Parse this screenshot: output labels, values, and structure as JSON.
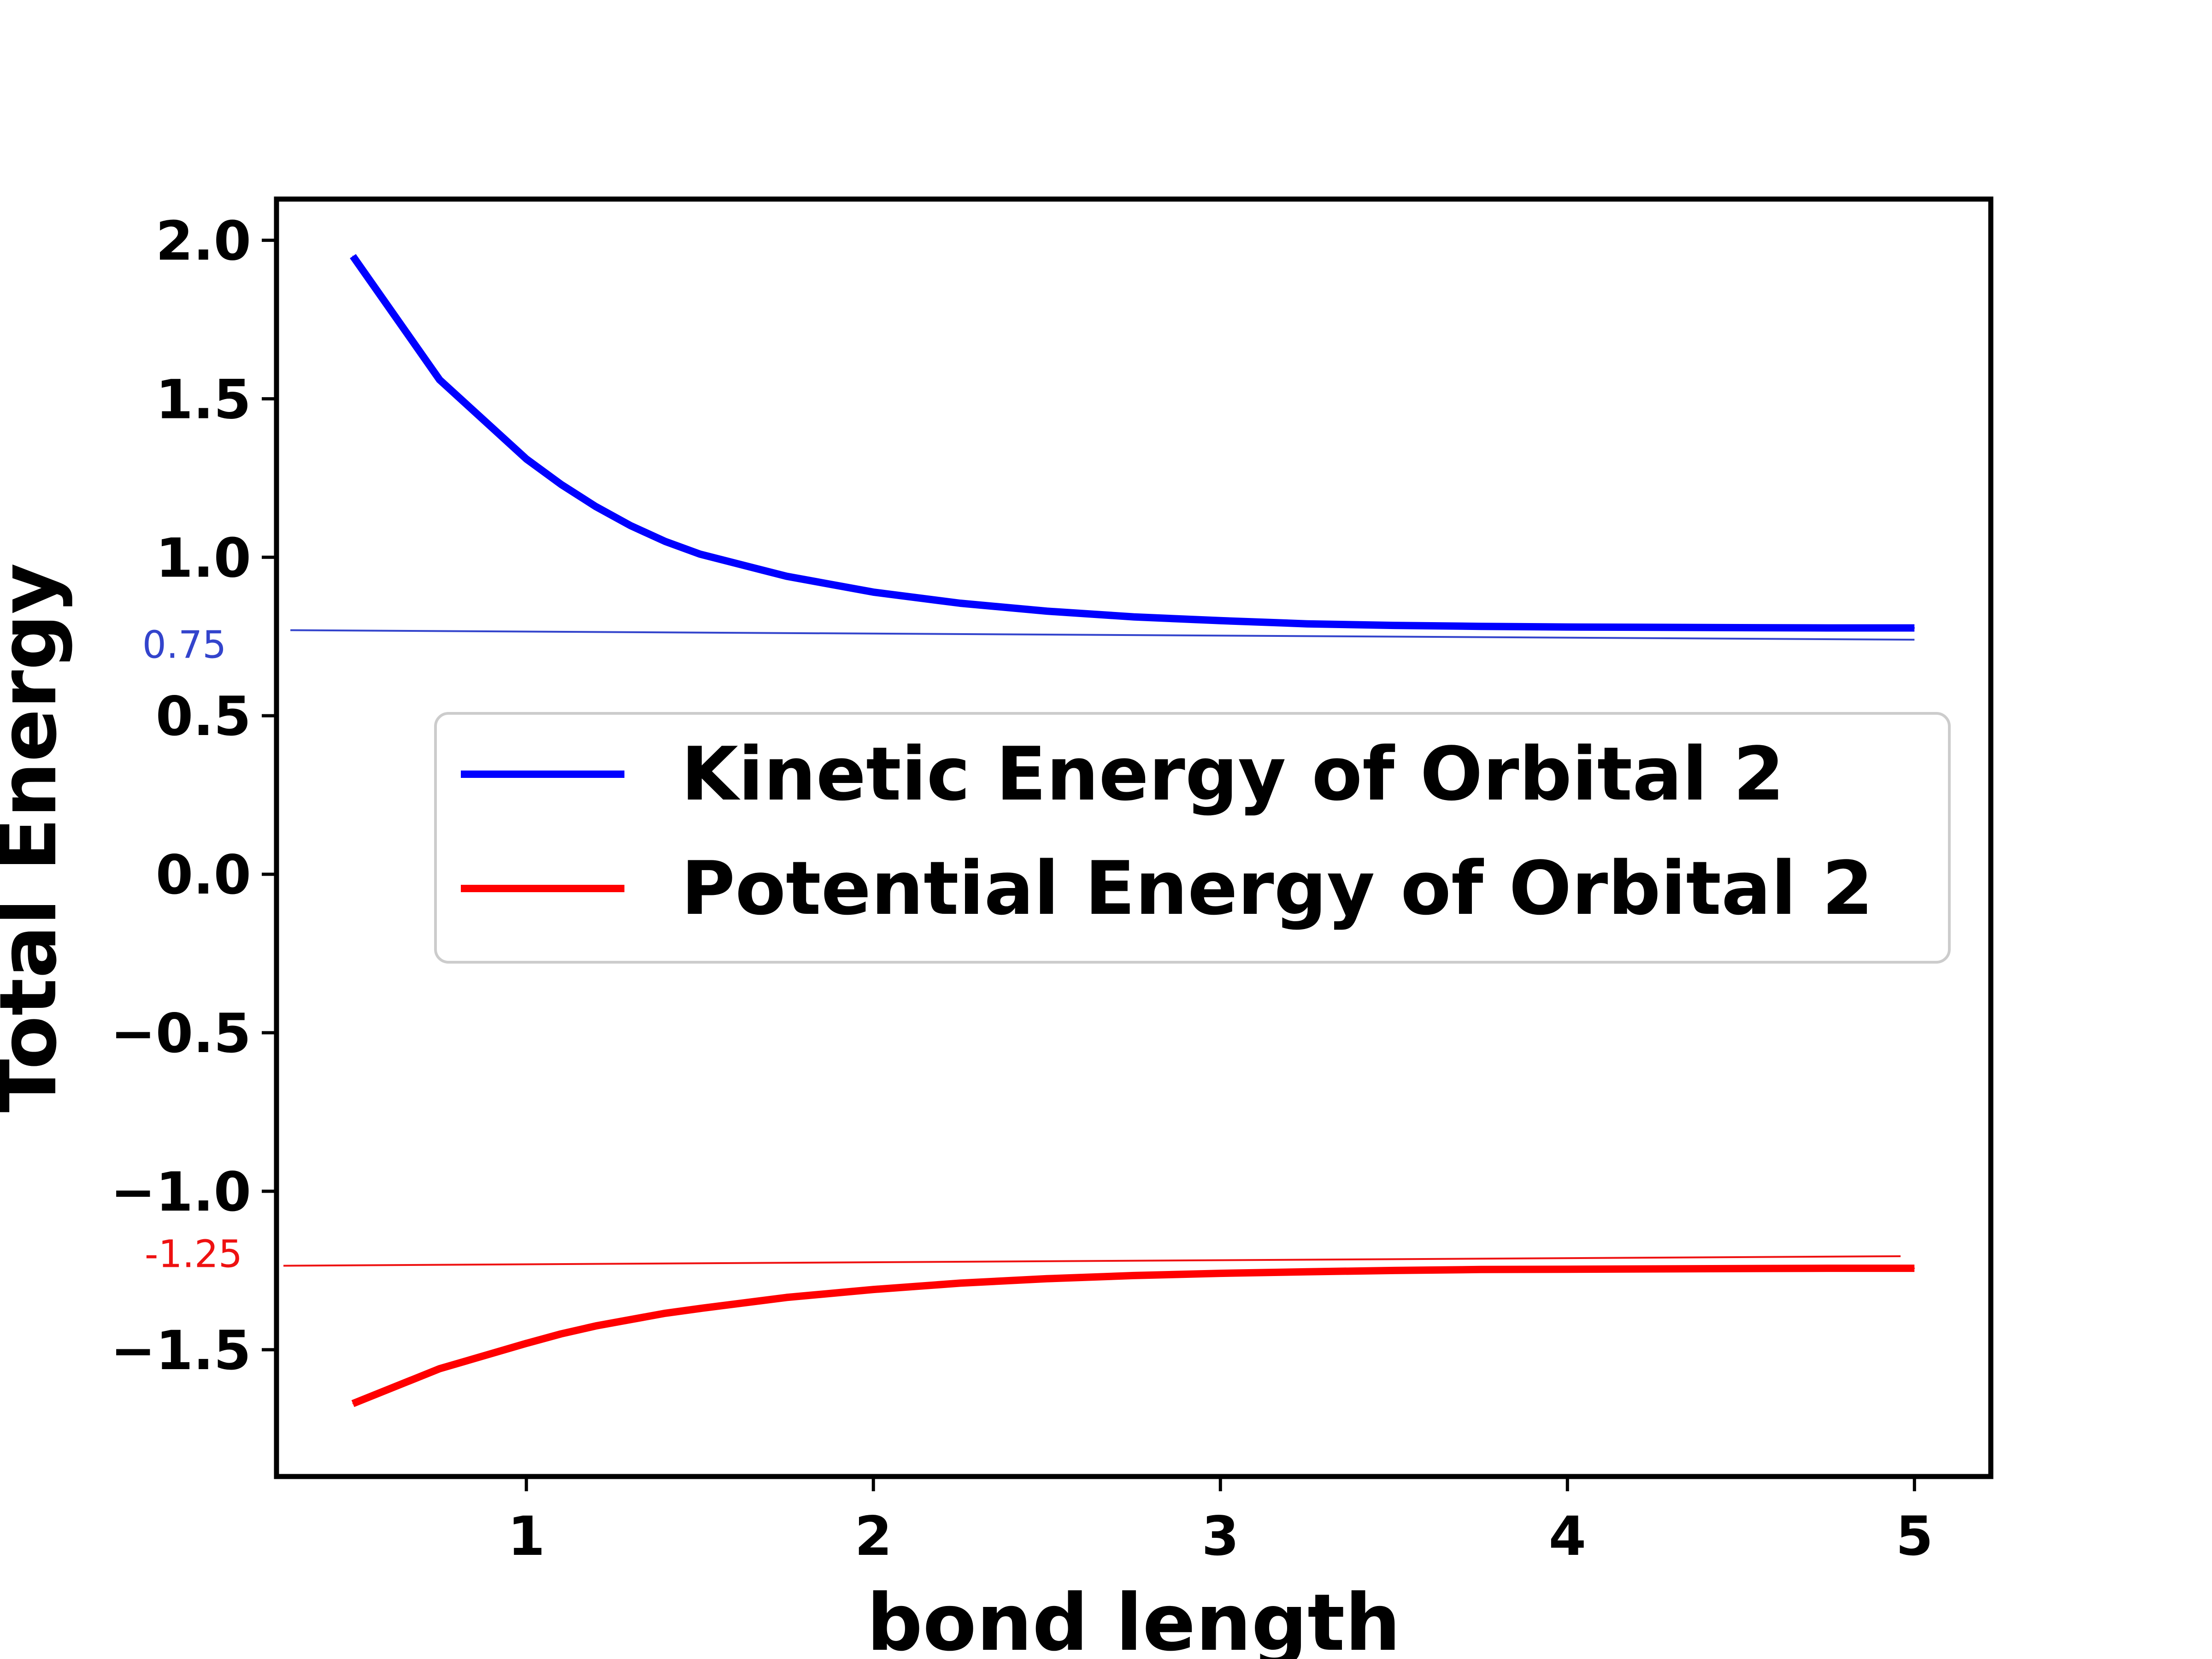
{
  "chart_data": {
    "type": "line",
    "xlabel": "bond length",
    "ylabel": "Total Energy",
    "xlim": [
      0.28,
      5.22
    ],
    "ylim": [
      -1.9,
      2.13
    ],
    "x_ticks": [
      {
        "value": 1,
        "label": "1"
      },
      {
        "value": 2,
        "label": "2"
      },
      {
        "value": 3,
        "label": "3"
      },
      {
        "value": 4,
        "label": "4"
      },
      {
        "value": 5,
        "label": "5"
      }
    ],
    "y_ticks": [
      {
        "value": 2.0,
        "label": "2.0"
      },
      {
        "value": 1.5,
        "label": "1.5"
      },
      {
        "value": 1.0,
        "label": "1.0"
      },
      {
        "value": 0.5,
        "label": "0.5"
      },
      {
        "value": 0.0,
        "label": "0.0"
      },
      {
        "value": -0.5,
        "label": "−0.5"
      },
      {
        "value": -1.0,
        "label": "−1.0"
      },
      {
        "value": -1.5,
        "label": "−1.5"
      }
    ],
    "grid": false,
    "legend_position": "center-right",
    "series": [
      {
        "name": "Kinetic Energy of Orbital 2",
        "color": "#0000ff",
        "x": [
          0.5,
          0.75,
          1.0,
          1.1,
          1.2,
          1.3,
          1.4,
          1.5,
          1.75,
          2.0,
          2.25,
          2.5,
          2.75,
          3.0,
          3.25,
          3.5,
          3.75,
          4.0,
          4.25,
          4.5,
          4.75,
          5.0
        ],
        "y": [
          1.95,
          1.56,
          1.31,
          1.23,
          1.16,
          1.1,
          1.05,
          1.01,
          0.94,
          0.89,
          0.855,
          0.83,
          0.812,
          0.8,
          0.79,
          0.785,
          0.782,
          0.78,
          0.779,
          0.778,
          0.777,
          0.777
        ]
      },
      {
        "name": "Potential Energy of Orbital 2",
        "color": "#ff0000",
        "x": [
          0.5,
          0.75,
          1.0,
          1.1,
          1.2,
          1.3,
          1.4,
          1.5,
          1.75,
          2.0,
          2.25,
          2.5,
          2.75,
          3.0,
          3.25,
          3.5,
          3.75,
          4.0,
          4.25,
          4.5,
          4.75,
          5.0
        ],
        "y": [
          -1.67,
          -1.56,
          -1.48,
          -1.45,
          -1.425,
          -1.405,
          -1.385,
          -1.37,
          -1.335,
          -1.31,
          -1.29,
          -1.276,
          -1.266,
          -1.259,
          -1.254,
          -1.25,
          -1.247,
          -1.246,
          -1.245,
          -1.244,
          -1.243,
          -1.243
        ]
      }
    ],
    "annotations": [
      {
        "label": "0.75",
        "color": "#3344cc",
        "line": {
          "x1": 0.32,
          "y1": 0.77,
          "x2": 5.0,
          "y2": 0.74
        }
      },
      {
        "label": "-1.25",
        "color": "#ee1111",
        "line": {
          "x1": 0.3,
          "y1": -1.235,
          "x2": 4.96,
          "y2": -1.205
        }
      }
    ]
  }
}
